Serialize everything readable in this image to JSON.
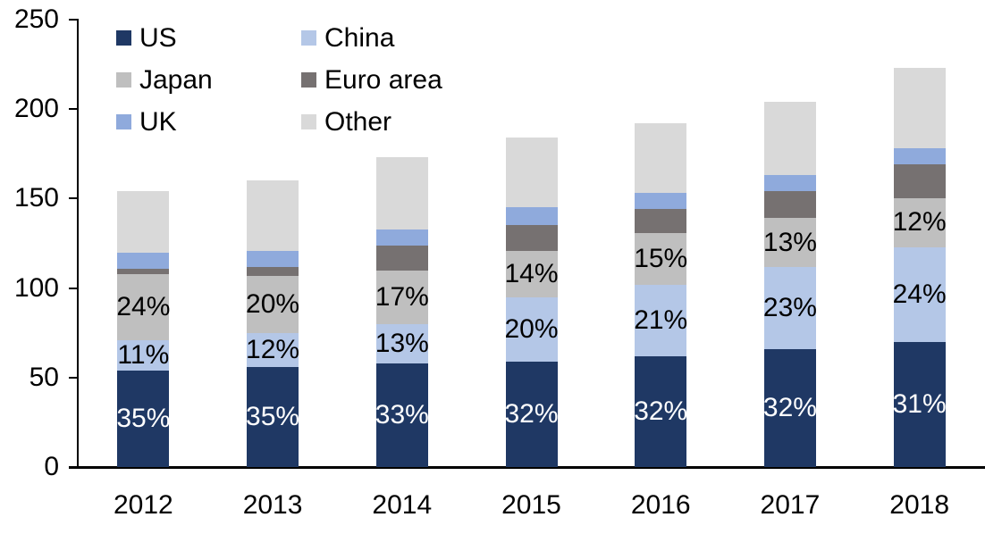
{
  "chart_data": {
    "type": "bar",
    "stacked": true,
    "title": "",
    "xlabel": "",
    "ylabel": "",
    "categories": [
      "2012",
      "2013",
      "2014",
      "2015",
      "2016",
      "2017",
      "2018"
    ],
    "series": [
      {
        "name": "US",
        "color": "#1F3864",
        "label_text_color": "#FFFFFF",
        "values": [
          54,
          56,
          58,
          59,
          62,
          66,
          70
        ],
        "labels": [
          "35%",
          "35%",
          "33%",
          "32%",
          "32%",
          "32%",
          "31%"
        ]
      },
      {
        "name": "China",
        "color": "#B4C7E7",
        "label_text_color": "#000000",
        "values": [
          17,
          19,
          22,
          36,
          40,
          46,
          53
        ],
        "labels": [
          "11%",
          "12%",
          "13%",
          "20%",
          "21%",
          "23%",
          "24%"
        ]
      },
      {
        "name": "Japan",
        "color": "#BFBFBF",
        "label_text_color": "#000000",
        "values": [
          37,
          32,
          30,
          26,
          29,
          27,
          27
        ],
        "labels": [
          "24%",
          "20%",
          "17%",
          "14%",
          "15%",
          "13%",
          "12%"
        ]
      },
      {
        "name": "Euro area",
        "color": "#767171",
        "values": [
          3,
          5,
          14,
          14,
          13,
          15,
          19
        ],
        "labels": null
      },
      {
        "name": "UK",
        "color": "#8FAADC",
        "values": [
          9,
          9,
          9,
          10,
          9,
          9,
          9
        ],
        "labels": null
      },
      {
        "name": "Other",
        "color": "#D9D9D9",
        "values": [
          34,
          39,
          40,
          39,
          39,
          41,
          45
        ],
        "labels": null
      }
    ],
    "totals": [
      154,
      160,
      173,
      184,
      192,
      204,
      223
    ],
    "ylim": [
      0,
      250
    ],
    "yticks": [
      "0",
      "50",
      "100",
      "150",
      "200",
      "250"
    ],
    "grid": false,
    "legend_position": "top-left, two columns, row order: US/China, Japan/Euro area, UK/Other",
    "axis_color": "#000000",
    "background_color": "#FFFFFF",
    "label_colors": {
      "inside_us": "#FFFFFF",
      "others": "#000000"
    }
  }
}
